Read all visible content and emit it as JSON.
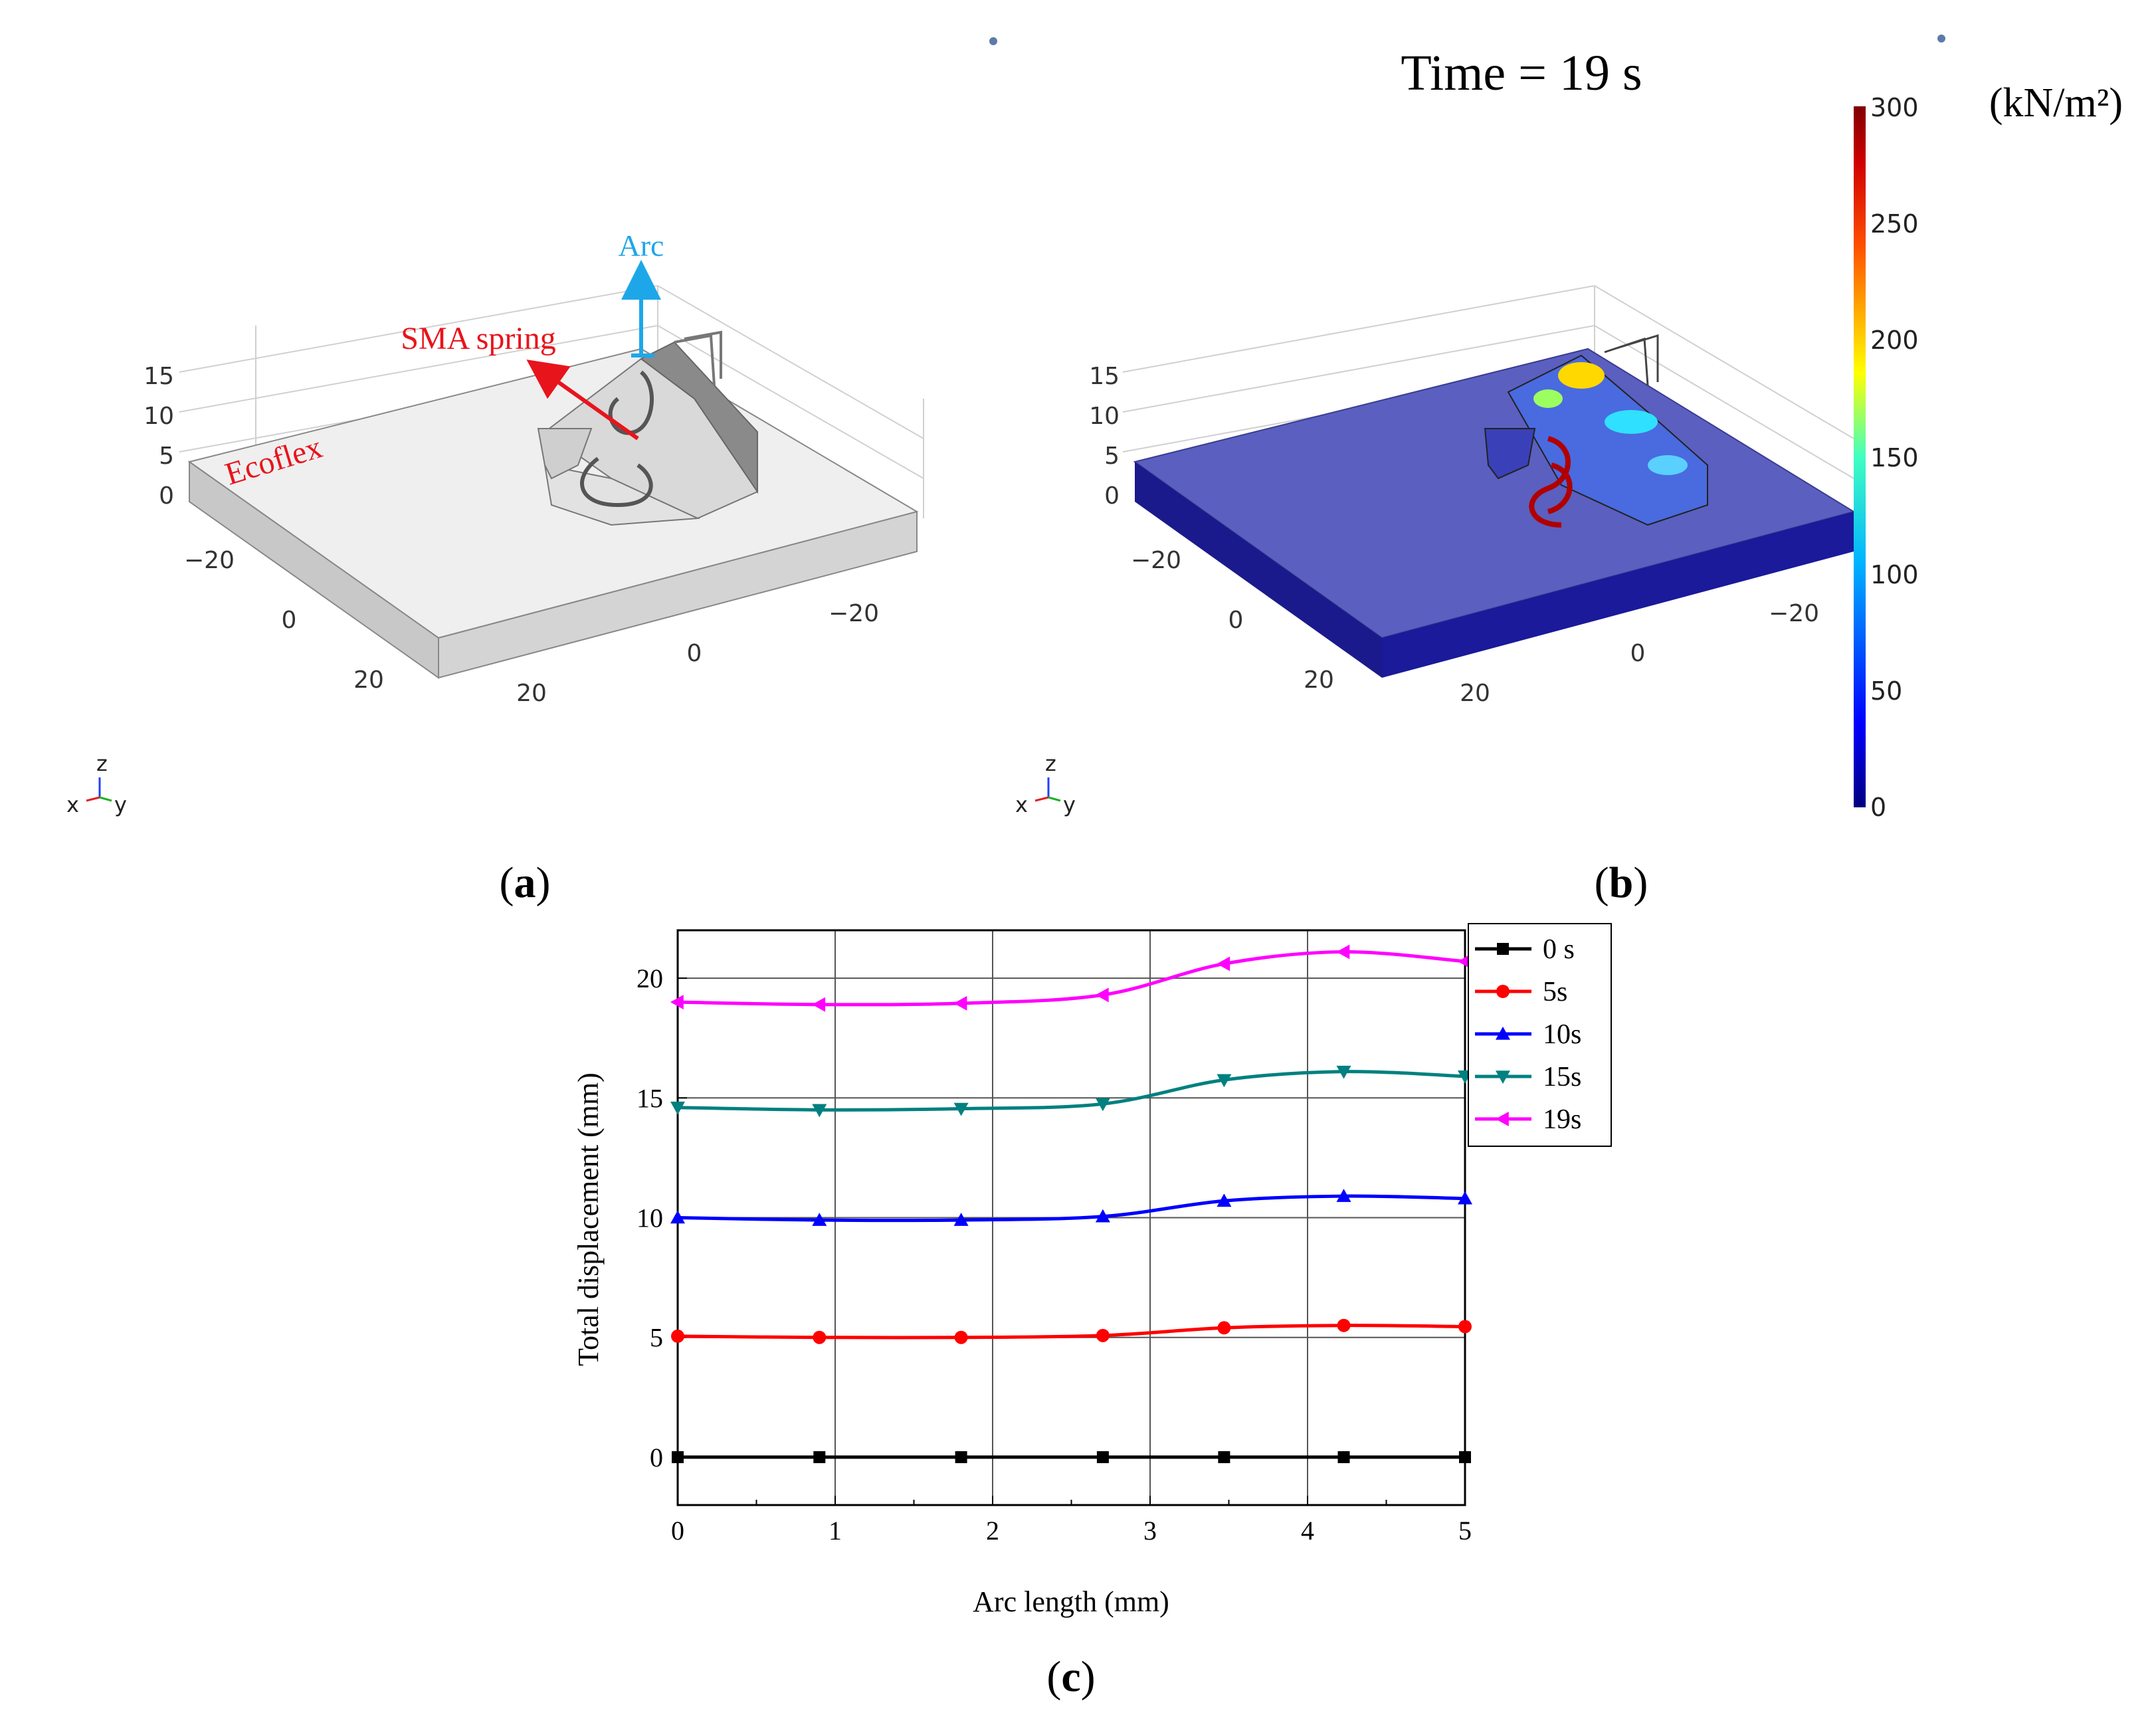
{
  "panel_a": {
    "label": "a",
    "annotations": {
      "arc": "Arc",
      "sma": "SMA spring",
      "ecoflex": "Ecoflex"
    },
    "z_ticks": [
      "15",
      "10",
      "5",
      "0"
    ],
    "x_ticks": [
      "−20",
      "0",
      "20"
    ],
    "y_ticks": [
      "−20",
      "0",
      "20"
    ],
    "triad": {
      "z": "z",
      "x": "x",
      "y": "y"
    }
  },
  "panel_b": {
    "label": "b",
    "time_label": "Time = 19 s",
    "unit": "(kN/m²)",
    "colorbar_ticks": [
      "300",
      "250",
      "200",
      "150",
      "100",
      "50",
      "0"
    ],
    "z_ticks": [
      "15",
      "10",
      "5",
      "0"
    ],
    "x_ticks": [
      "−20",
      "0",
      "20"
    ],
    "y_ticks": [
      "−20",
      "0",
      "20"
    ],
    "triad": {
      "z": "z",
      "x": "x",
      "y": "y"
    }
  },
  "panel_c": {
    "label": "c"
  },
  "colors": {
    "0s": "#000000",
    "5s": "#ff0000",
    "10s": "#0000ff",
    "15s": "#008080",
    "19s": "#ff00ff",
    "base_blue": "#5b5fbf",
    "base_side": "#1a1a8c",
    "arc_arrow": "#1ea7e8",
    "sma_arrow": "#e8141c"
  },
  "chart_data": {
    "type": "line",
    "xlabel": "Arc length (mm)",
    "ylabel": "Total displacement (mm)",
    "xlim": [
      0,
      5
    ],
    "ylim": [
      -2,
      22
    ],
    "x_ticks": [
      0,
      1,
      2,
      3,
      4,
      5
    ],
    "y_ticks": [
      0,
      5,
      10,
      15,
      20
    ],
    "grid": true,
    "legend_position": "outside-top-right",
    "x": [
      0,
      0.9,
      1.8,
      2.7,
      3.47,
      4.23,
      5
    ],
    "series": [
      {
        "name": "0 s",
        "marker": "square",
        "values": [
          0,
          0,
          0,
          0,
          0,
          0,
          0
        ]
      },
      {
        "name": "5s",
        "marker": "circle",
        "values": [
          5.05,
          5.0,
          5.0,
          5.08,
          5.4,
          5.5,
          5.45
        ]
      },
      {
        "name": "10s",
        "marker": "triangle-up",
        "values": [
          10.0,
          9.9,
          9.9,
          10.05,
          10.7,
          10.9,
          10.8
        ]
      },
      {
        "name": "15s",
        "marker": "triangle-down",
        "values": [
          14.6,
          14.5,
          14.55,
          14.75,
          15.75,
          16.1,
          15.9
        ]
      },
      {
        "name": "19s",
        "marker": "triangle-left",
        "values": [
          19.0,
          18.9,
          18.95,
          19.3,
          20.6,
          21.1,
          20.7
        ]
      }
    ]
  }
}
